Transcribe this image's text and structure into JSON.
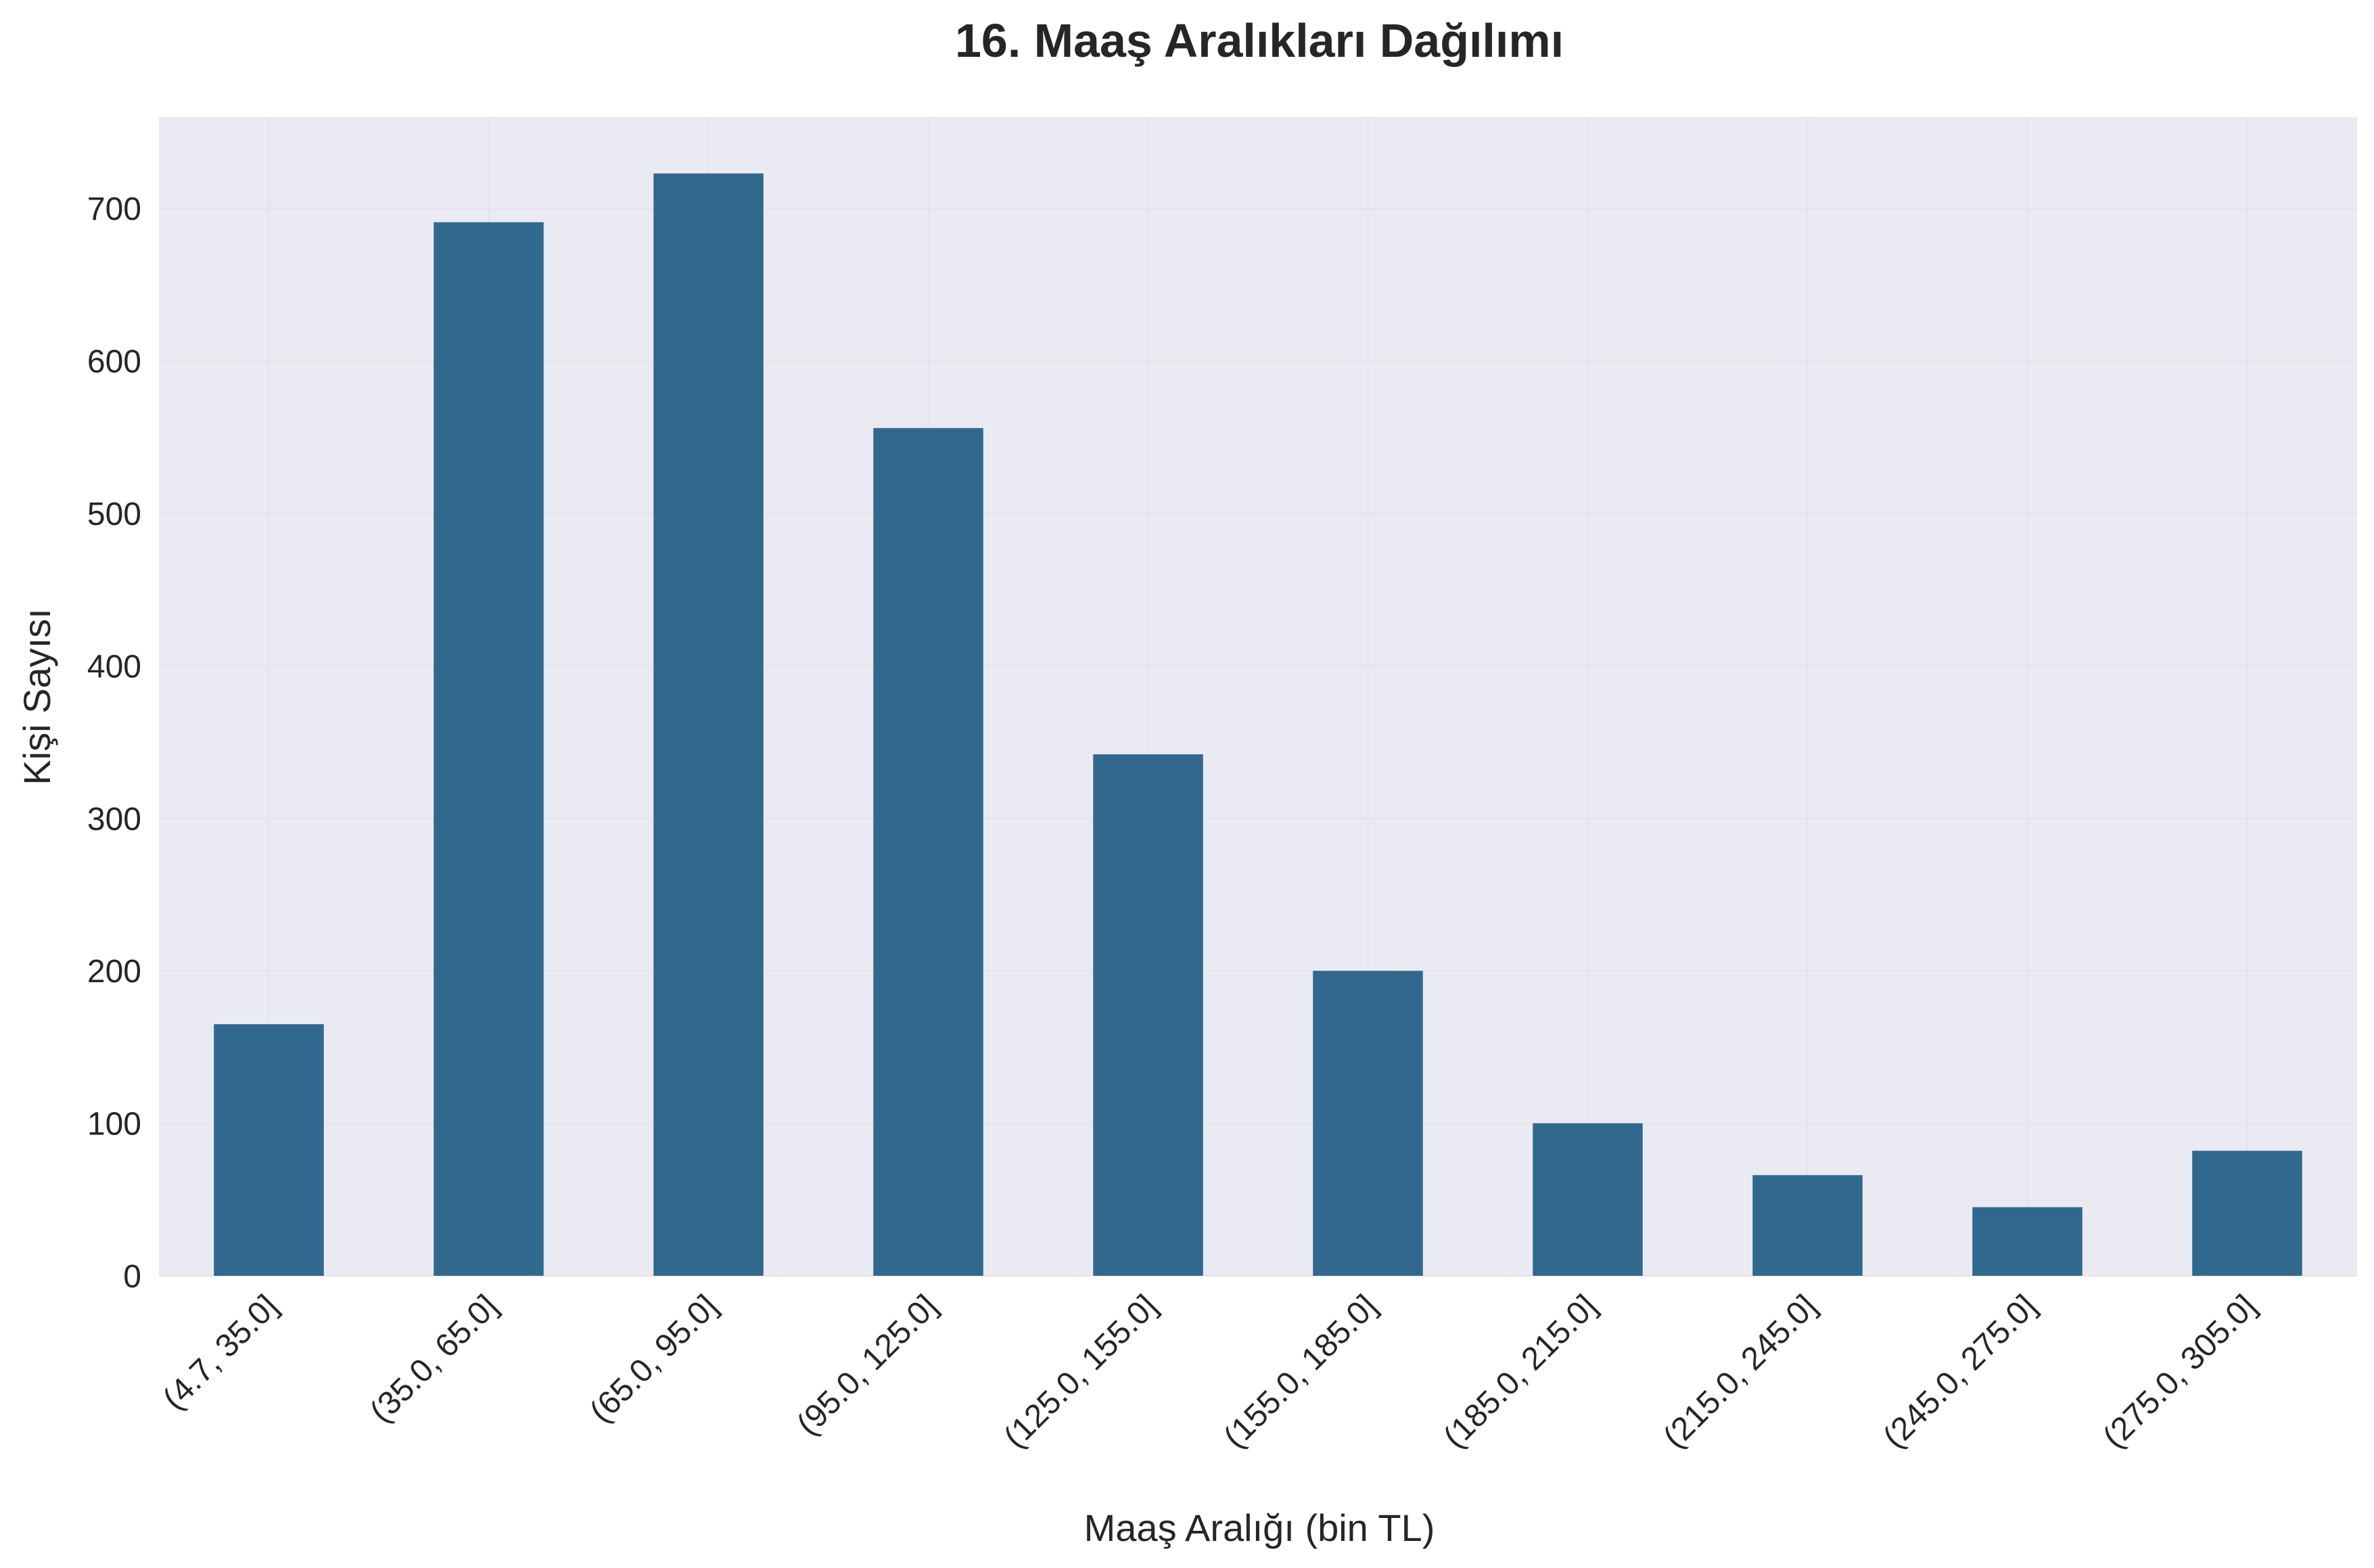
{
  "chart_data": {
    "type": "bar",
    "title": "16. Maaş Aralıkları Dağılımı",
    "xlabel": "Maaş Aralığı (bin TL)",
    "ylabel": "Kişi Sayısı",
    "categories": [
      "(4.7, 35.0]",
      "(35.0, 65.0]",
      "(65.0, 95.0]",
      "(95.0, 125.0]",
      "(125.0, 155.0]",
      "(155.0, 185.0]",
      "(185.0, 215.0]",
      "(215.0, 245.0]",
      "(245.0, 275.0]",
      "(275.0, 305.0]"
    ],
    "values": [
      165,
      691,
      723,
      556,
      342,
      200,
      100,
      66,
      45,
      82
    ],
    "ylim": [
      0,
      760
    ],
    "yticks": [
      0,
      100,
      200,
      300,
      400,
      500,
      600,
      700
    ],
    "grid": true,
    "legend": "none",
    "colors": {
      "bar": "#31688e",
      "plot_background": "#eaeaf2",
      "grid": "#e3e3e8",
      "text": "#262626"
    }
  }
}
